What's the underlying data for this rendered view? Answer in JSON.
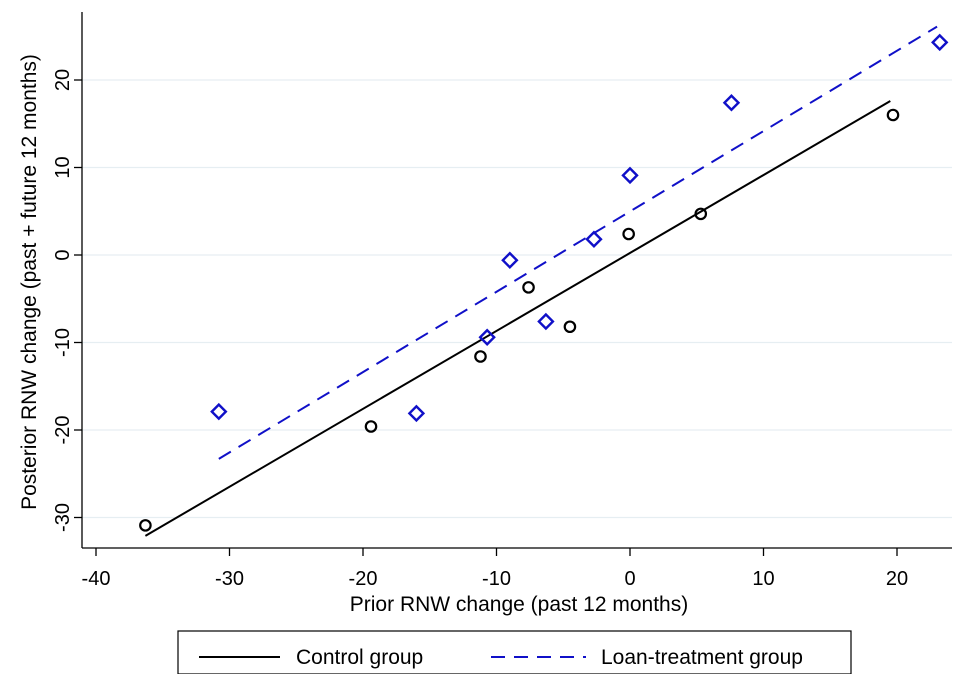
{
  "chart_data": {
    "type": "scatter",
    "title": "",
    "xlabel": "Prior RNW change (past 12 months)",
    "ylabel": "Posterior RNW change (past + future 12 months)",
    "xlim": [
      -42,
      24.5
    ],
    "ylim": [
      -33.5,
      27.5
    ],
    "x_ticks": [
      -40,
      -30,
      -20,
      -10,
      0,
      10,
      20
    ],
    "y_ticks": [
      -30,
      -20,
      -10,
      0,
      10,
      20
    ],
    "x_tick_labels": [
      "-40",
      "-30",
      "-20",
      "-10",
      "0",
      "10",
      "20"
    ],
    "y_tick_labels": [
      "-30",
      "-20",
      "-10",
      "0",
      "10",
      "20"
    ],
    "grid": "horizontal",
    "legend_position": "bottom",
    "series": [
      {
        "name": "Control group",
        "marker": "circle",
        "color": "#000000",
        "points": [
          [
            -36.3,
            -30.9
          ],
          [
            -19.4,
            -19.6
          ],
          [
            -11.2,
            -11.6
          ],
          [
            -7.6,
            -3.7
          ],
          [
            -4.5,
            -8.2
          ],
          [
            -0.1,
            2.4
          ],
          [
            5.3,
            4.7
          ],
          [
            19.7,
            16.0
          ]
        ],
        "fit": {
          "x": [
            -36.3,
            19.5
          ],
          "y": [
            -32.1,
            17.6
          ],
          "style": "solid"
        }
      },
      {
        "name": "Loan-treatment group",
        "marker": "diamond",
        "color": "#1010c8",
        "points": [
          [
            -30.8,
            -17.9
          ],
          [
            -16.0,
            -18.1
          ],
          [
            -10.7,
            -9.4
          ],
          [
            -9.0,
            -0.6
          ],
          [
            -6.3,
            -7.6
          ],
          [
            -2.7,
            1.8
          ],
          [
            0.0,
            9.1
          ],
          [
            7.6,
            17.4
          ],
          [
            23.2,
            24.3
          ]
        ],
        "fit": {
          "x": [
            -30.8,
            23.0
          ],
          "y": [
            -23.3,
            26.1
          ],
          "style": "dashed"
        }
      }
    ]
  }
}
